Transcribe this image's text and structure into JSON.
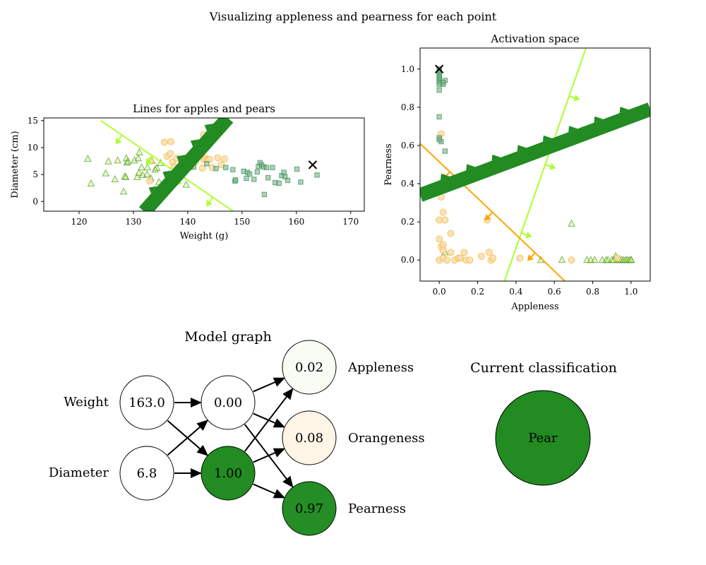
{
  "figure": {
    "title": "Visualizing appleness and pearness for each point"
  },
  "colors": {
    "apple": "#adff2f",
    "orange": "#ffa500",
    "pear": "#228b22",
    "pear_marker": "#2e8b57",
    "orange_marker_fill": "#f5deb3",
    "current_marker": "#000000"
  },
  "chart_data": [
    {
      "id": "weight_diameter",
      "type": "scatter",
      "title": "Lines for apples and pears",
      "xlabel": "Weight (g)",
      "ylabel": "Diameter (cm)",
      "xlim": [
        113.5,
        172.5
      ],
      "ylim": [
        -1.8,
        15.5
      ],
      "xticks": [
        120,
        130,
        140,
        150,
        160,
        170
      ],
      "yticks": [
        0,
        5,
        10,
        15
      ],
      "grid": false,
      "series": [
        {
          "marker": "triangle",
          "color_key": "apple",
          "points": [
            [
              121.6,
              7.9
            ],
            [
              122.2,
              3.3
            ],
            [
              124.9,
              5.2
            ],
            [
              125.4,
              7.4
            ],
            [
              126.6,
              4.1
            ],
            [
              127.1,
              7.6
            ],
            [
              128.2,
              1.8
            ],
            [
              128.4,
              4.6
            ],
            [
              128.8,
              7.2
            ],
            [
              128.7,
              8.0
            ],
            [
              128.6,
              4.5
            ],
            [
              129.0,
              7.4
            ],
            [
              130.2,
              7.6
            ],
            [
              130.7,
              4.5
            ],
            [
              130.9,
              8.0
            ],
            [
              131.1,
              9.1
            ],
            [
              131.0,
              5.3
            ],
            [
              131.5,
              6.3
            ],
            [
              131.7,
              4.9
            ],
            [
              132.5,
              5.0
            ],
            [
              132.6,
              6.3
            ],
            [
              133.4,
              7.5
            ],
            [
              134.3,
              6.2
            ],
            [
              134.7,
              3.6
            ],
            [
              135.0,
              7.1
            ],
            [
              134.0,
              5.9
            ],
            [
              133.2,
              4.3
            ],
            [
              139.7,
              3.1
            ]
          ]
        },
        {
          "marker": "circle",
          "color_key": "orange",
          "points": [
            [
              133.0,
              3.8
            ],
            [
              133.1,
              7.5
            ],
            [
              135.7,
              11.0
            ],
            [
              136.2,
              8.4
            ],
            [
              136.8,
              8.9
            ],
            [
              136.9,
              11.1
            ],
            [
              137.2,
              7.3
            ],
            [
              137.5,
              6.4
            ],
            [
              138.0,
              8.0
            ],
            [
              138.8,
              7.0
            ],
            [
              139.1,
              7.8
            ],
            [
              139.4,
              8.0
            ],
            [
              139.7,
              5.8
            ],
            [
              140.5,
              6.5
            ],
            [
              140.6,
              6.4
            ],
            [
              141.4,
              7.3
            ],
            [
              141.5,
              8.8
            ],
            [
              141.9,
              9.6
            ],
            [
              142.7,
              6.2
            ],
            [
              142.9,
              7.8
            ],
            [
              142.9,
              12.4
            ],
            [
              143.3,
              8.0
            ],
            [
              143.7,
              7.8
            ],
            [
              144.0,
              7.8
            ],
            [
              144.5,
              6.3
            ],
            [
              145.5,
              8.1
            ],
            [
              146.8,
              7.9
            ],
            [
              146.2,
              6.8
            ]
          ]
        },
        {
          "marker": "square",
          "color_key": "pear_marker",
          "points": [
            [
              141.1,
              6.4
            ],
            [
              143.5,
              7.0
            ],
            [
              145.2,
              6.1
            ],
            [
              147.0,
              6.3
            ],
            [
              148.3,
              5.9
            ],
            [
              148.7,
              3.8
            ],
            [
              148.8,
              4.0
            ],
            [
              150.3,
              5.6
            ],
            [
              150.8,
              4.3
            ],
            [
              151.0,
              5.4
            ],
            [
              151.4,
              5.1
            ],
            [
              152.2,
              4.1
            ],
            [
              152.8,
              5.5
            ],
            [
              153.0,
              6.5
            ],
            [
              153.3,
              7.2
            ],
            [
              153.6,
              6.8
            ],
            [
              154.0,
              6.4
            ],
            [
              154.1,
              1.3
            ],
            [
              154.5,
              6.3
            ],
            [
              154.8,
              4.4
            ],
            [
              155.6,
              6.3
            ],
            [
              156.1,
              3.5
            ],
            [
              156.8,
              3.4
            ],
            [
              157.3,
              4.8
            ],
            [
              157.7,
              5.4
            ],
            [
              157.9,
              4.6
            ],
            [
              158.4,
              3.9
            ],
            [
              160.1,
              6.0
            ],
            [
              160.8,
              3.6
            ],
            [
              163.8,
              4.9
            ]
          ]
        }
      ],
      "current_point": [
        163.0,
        6.8
      ],
      "lines": [
        {
          "color_key": "apple",
          "from": [
            124.0,
            15.0
          ],
          "to": [
            148.5,
            -1.9
          ],
          "style": "thin",
          "arrow_count": 4
        },
        {
          "color_key": "pear",
          "from": [
            132.0,
            -1.9
          ],
          "to": [
            147.4,
            15.5
          ],
          "style": "thick",
          "arrow_count": 5
        }
      ]
    },
    {
      "id": "activation_space",
      "type": "scatter",
      "title": "Activation space",
      "xlabel": "Appleness",
      "ylabel": "Pearness",
      "xlim": [
        -0.1,
        1.1
      ],
      "ylim": [
        -0.11,
        1.11
      ],
      "xticks": [
        0.0,
        0.2,
        0.4,
        0.6,
        0.8,
        1.0
      ],
      "yticks": [
        0.0,
        0.2,
        0.4,
        0.6,
        0.8,
        1.0
      ],
      "tick_labels": [
        "0.0",
        "0.2",
        "0.4",
        "0.6",
        "0.8",
        "1.0"
      ],
      "grid": false,
      "series": [
        {
          "marker": "triangle",
          "color_key": "apple",
          "points": [
            [
              0.53,
              0.0
            ],
            [
              0.64,
              0.0
            ],
            [
              0.69,
              0.19
            ],
            [
              0.77,
              0.0
            ],
            [
              0.79,
              0.0
            ],
            [
              0.81,
              0.0
            ],
            [
              0.85,
              0.0
            ],
            [
              0.87,
              0.0
            ],
            [
              0.88,
              0.0
            ],
            [
              0.9,
              0.0
            ],
            [
              0.91,
              0.0
            ],
            [
              0.92,
              0.02
            ],
            [
              0.93,
              0.0
            ],
            [
              0.94,
              0.0
            ],
            [
              0.95,
              0.0
            ],
            [
              0.96,
              0.0
            ],
            [
              0.97,
              0.0
            ],
            [
              0.98,
              0.0
            ],
            [
              0.99,
              0.0
            ],
            [
              1.0,
              0.0
            ],
            [
              1.0,
              0.0
            ],
            [
              0.03,
              0.04
            ]
          ]
        },
        {
          "marker": "circle",
          "color_key": "orange",
          "points": [
            [
              0.0,
              0.21
            ],
            [
              0.01,
              0.33
            ],
            [
              0.01,
              0.66
            ],
            [
              0.02,
              0.25
            ],
            [
              0.03,
              0.21
            ],
            [
              0.0,
              0.11
            ],
            [
              0.01,
              0.07
            ],
            [
              0.02,
              0.05
            ],
            [
              0.02,
              0.08
            ],
            [
              0.0,
              0.0
            ],
            [
              0.02,
              0.01
            ],
            [
              0.04,
              0.0
            ],
            [
              0.06,
              0.04
            ],
            [
              0.06,
              0.14
            ],
            [
              0.08,
              0.0
            ],
            [
              0.1,
              0.01
            ],
            [
              0.11,
              0.01
            ],
            [
              0.13,
              0.04
            ],
            [
              0.14,
              0.0
            ],
            [
              0.16,
              0.0
            ],
            [
              0.22,
              0.02
            ],
            [
              0.25,
              0.21
            ],
            [
              0.26,
              0.04
            ],
            [
              0.27,
              0.0
            ],
            [
              0.28,
              0.01
            ],
            [
              0.42,
              0.01
            ],
            [
              0.69,
              0.0
            ],
            [
              0.93,
              0.01
            ]
          ]
        },
        {
          "marker": "square",
          "color_key": "pear_marker",
          "points": [
            [
              0.0,
              1.0
            ],
            [
              0.0,
              0.99
            ],
            [
              0.0,
              0.98
            ],
            [
              0.0,
              0.97
            ],
            [
              0.0,
              0.96
            ],
            [
              0.0,
              0.95
            ],
            [
              0.0,
              0.94
            ],
            [
              0.0,
              0.93
            ],
            [
              0.0,
              0.89
            ],
            [
              0.0,
              0.75
            ],
            [
              0.0,
              0.64
            ],
            [
              0.01,
              0.62
            ],
            [
              0.02,
              0.92
            ],
            [
              0.03,
              0.94
            ],
            [
              0.03,
              0.57
            ],
            [
              0.0,
              0.63
            ],
            [
              0.02,
              0.93
            ],
            [
              0.0,
              0.92
            ]
          ]
        }
      ],
      "current_point": [
        0.0,
        1.0
      ],
      "lines": [
        {
          "color_key": "apple",
          "from": [
            0.34,
            -0.11
          ],
          "to": [
            0.765,
            1.11
          ],
          "style": "thin",
          "arrow_count": 3
        },
        {
          "color_key": "orange",
          "from": [
            -0.1,
            0.61
          ],
          "to": [
            0.655,
            -0.11
          ],
          "style": "thin",
          "arrow_count": 3
        },
        {
          "color_key": "pear",
          "from": [
            -0.1,
            0.34
          ],
          "to": [
            1.1,
            0.79
          ],
          "style": "thick",
          "arrow_count": 8
        }
      ]
    }
  ],
  "model_graph": {
    "title": "Model graph",
    "input_labels": [
      "Weight",
      "Diameter"
    ],
    "input_values": [
      "163.0",
      "6.8"
    ],
    "hidden_values": [
      "0.00",
      "1.00"
    ],
    "hidden_activations": [
      0.0,
      1.0
    ],
    "output_labels": [
      "Appleness",
      "Orangeness",
      "Pearness"
    ],
    "output_values": [
      "0.02",
      "0.08",
      "0.97"
    ],
    "output_fills": [
      "#f7fcf5",
      "#fff5e6",
      "#258d25"
    ]
  },
  "classification": {
    "title": "Current classification",
    "label": "Pear",
    "color_key": "pear"
  }
}
